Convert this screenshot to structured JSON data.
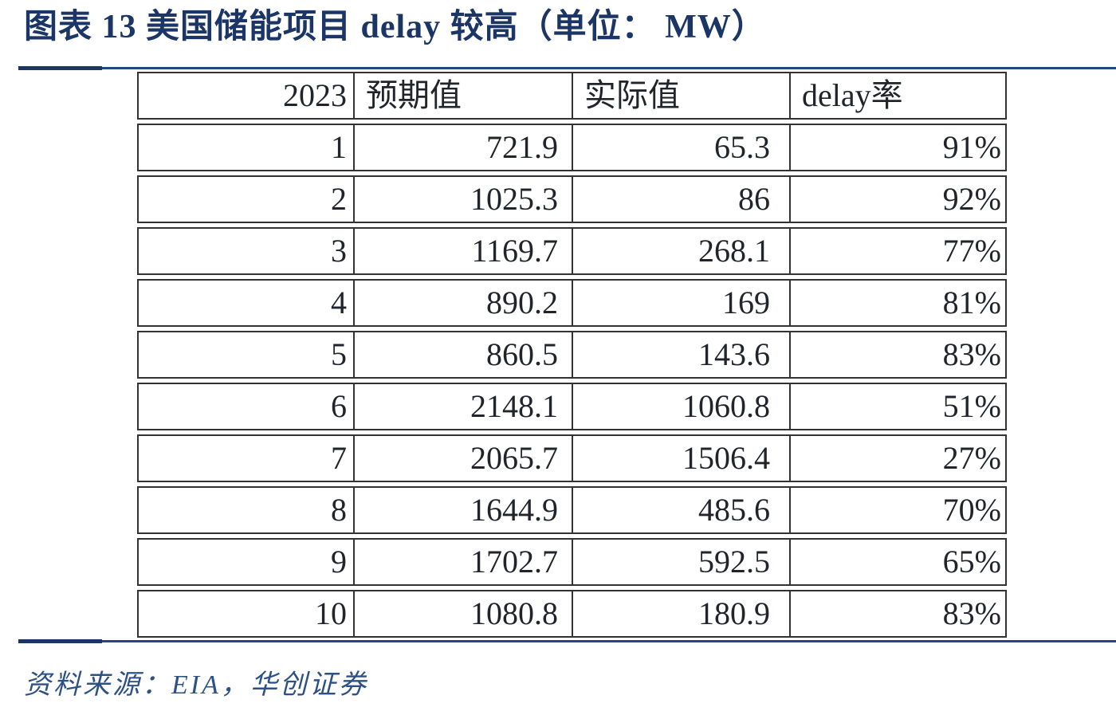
{
  "title": "图表 13  美国储能项目 delay 较高（单位： MW）",
  "source": "资料来源：EIA，华创证券",
  "table": {
    "columns": [
      "2023",
      "预期值",
      "实际值",
      "delay率"
    ],
    "rows": [
      [
        "1",
        "721.9",
        "65.3",
        "91%"
      ],
      [
        "2",
        "1025.3",
        "86",
        "92%"
      ],
      [
        "3",
        "1169.7",
        "268.1",
        "77%"
      ],
      [
        "4",
        "890.2",
        "169",
        "81%"
      ],
      [
        "5",
        "860.5",
        "143.6",
        "83%"
      ],
      [
        "6",
        "2148.1",
        "1060.8",
        "51%"
      ],
      [
        "7",
        "2065.7",
        "1506.4",
        "27%"
      ],
      [
        "8",
        "1644.9",
        "485.6",
        "70%"
      ],
      [
        "9",
        "1702.7",
        "592.5",
        "65%"
      ],
      [
        "10",
        "1080.8",
        "180.9",
        "83%"
      ]
    ]
  },
  "colors": {
    "title_navy": "#1b3666",
    "rule_navy": "#24477e",
    "table_border": "#333333",
    "table_text": "#21252b",
    "source_blue": "#2d5186"
  },
  "chart_data": {
    "type": "table",
    "title": "美国储能项目 delay 较高（单位：MW）",
    "columns": [
      "2023",
      "预期值",
      "实际值",
      "delay率"
    ],
    "months": [
      1,
      2,
      3,
      4,
      5,
      6,
      7,
      8,
      9,
      10
    ],
    "expected_mw": [
      721.9,
      1025.3,
      1169.7,
      890.2,
      860.5,
      2148.1,
      2065.7,
      1644.9,
      1702.7,
      1080.8
    ],
    "actual_mw": [
      65.3,
      86,
      268.1,
      169,
      143.6,
      1060.8,
      1506.4,
      485.6,
      592.5,
      180.9
    ],
    "delay_rate_pct": [
      91,
      92,
      77,
      81,
      83,
      51,
      27,
      70,
      65,
      83
    ]
  }
}
